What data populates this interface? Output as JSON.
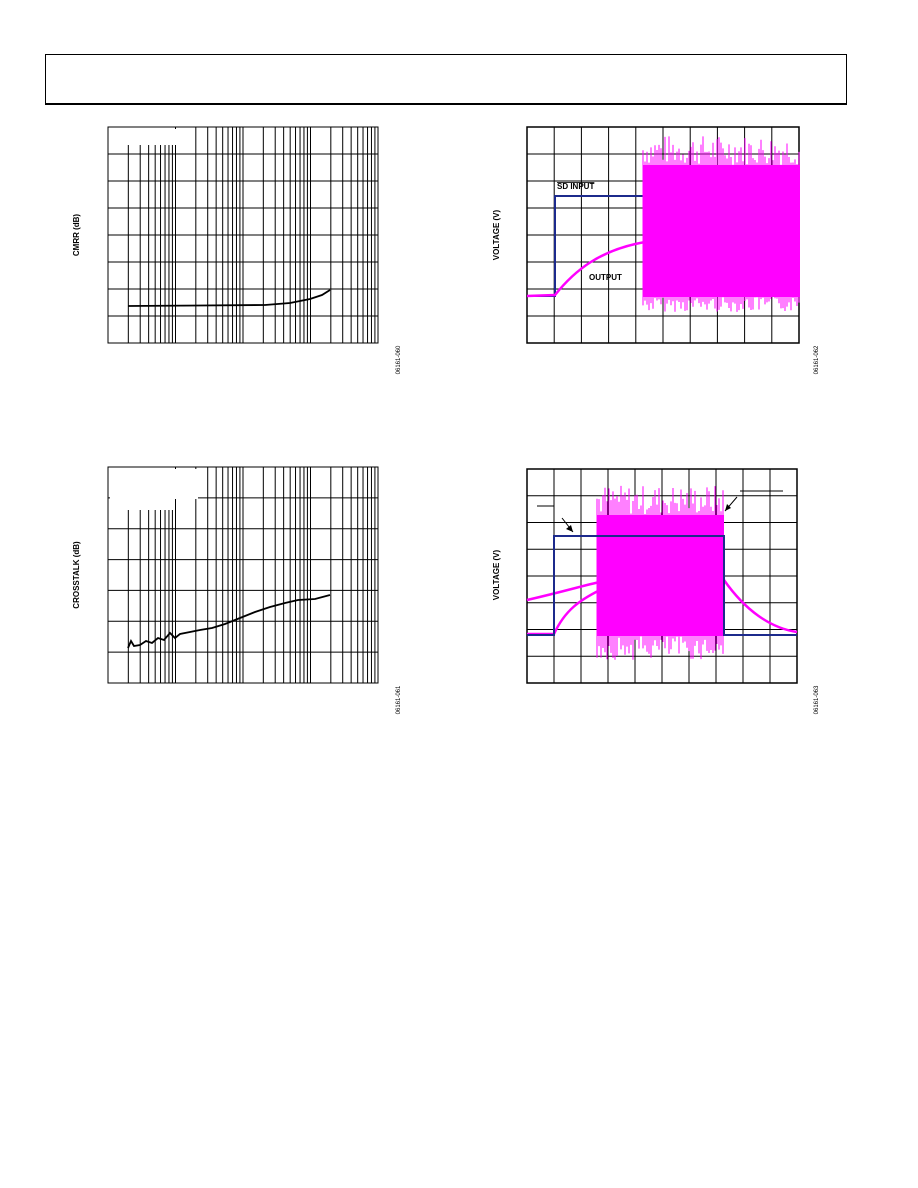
{
  "figures": [
    {
      "y_label": "CMRR (dB)",
      "code": "06161-060"
    },
    {
      "y_label": "VOLTAGE (V)",
      "code": "06161-062",
      "trace_labels": [
        "SD INPUT",
        "OUTPUT"
      ]
    },
    {
      "y_label": "CROSSTALK (dB)",
      "code": "06161-061"
    },
    {
      "y_label": "VOLTAGE (V)",
      "code": "06161-063"
    }
  ]
}
